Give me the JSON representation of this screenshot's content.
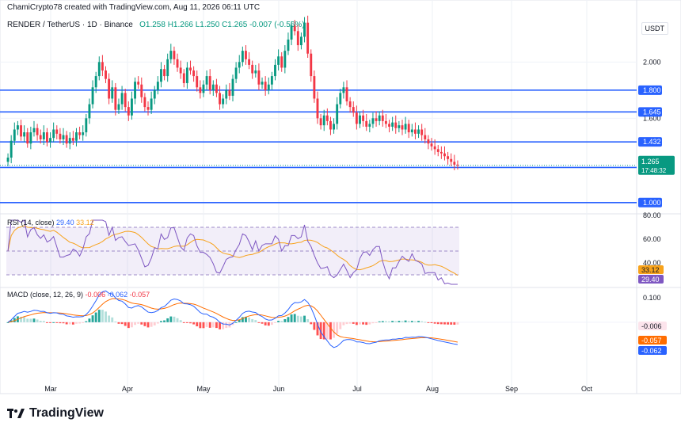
{
  "header": {
    "author_line": "ChamiCrypto78 created with TradingView.com, Aug 11, 2026 06:11 UTC"
  },
  "symbol_line": {
    "pair": "RENDER / TetherUS · 1D · Binance",
    "ohlc": "O1.258  H1.266  L1.250  C1.265  -0.007 (-0.56%)"
  },
  "currency": "USDT",
  "brand": "TradingView",
  "indicators": {
    "rsi_label": "RSI (14, close)",
    "rsi_value": "29.40",
    "rsi_ma_value": "33.12",
    "macd_label": "MACD (close, 12, 26, 9)",
    "macd_hist": "-0.006",
    "macd_line": "-0.062",
    "macd_signal": "-0.057"
  },
  "colors": {
    "up": "#089981",
    "down": "#f23645",
    "level": "#2962ff",
    "rsi": "#7e57c2",
    "rsi_ma": "#f7a21b",
    "macd": "#2962ff",
    "signal": "#ff6d00"
  },
  "chart_data": [
    {
      "type": "candlestick",
      "title": "RENDER / TetherUS · 1D · Binance",
      "x_ticks": [
        "Mar",
        "Apr",
        "May",
        "Jun",
        "Jul",
        "Aug",
        "Sep",
        "Oct"
      ],
      "y_ticks": [
        "1.000",
        "1.432",
        "1.600",
        "1.645",
        "1.800",
        "2.000"
      ],
      "ylim": [
        0.92,
        2.34
      ],
      "horizontal_levels": [
        1.0,
        1.25,
        1.432,
        1.645,
        1.8
      ],
      "last_price": 1.265,
      "last_price_countdown": "17:48:32",
      "close_series": [
        1.32,
        1.44,
        1.52,
        1.55,
        1.47,
        1.5,
        1.42,
        1.5,
        1.53,
        1.48,
        1.45,
        1.5,
        1.43,
        1.46,
        1.52,
        1.49,
        1.45,
        1.48,
        1.42,
        1.46,
        1.44,
        1.5,
        1.48,
        1.5,
        1.6,
        1.7,
        1.82,
        1.9,
        2.0,
        1.94,
        1.88,
        1.74,
        1.82,
        1.66,
        1.7,
        1.78,
        1.68,
        1.62,
        1.74,
        1.86,
        1.84,
        1.75,
        1.68,
        1.66,
        1.74,
        1.8,
        1.86,
        1.95,
        1.9,
        2.02,
        2.08,
        2.02,
        1.96,
        1.92,
        1.85,
        1.96,
        1.94,
        1.9,
        1.82,
        1.78,
        1.84,
        1.9,
        1.8,
        1.84,
        1.78,
        1.7,
        1.74,
        1.8,
        1.76,
        1.88,
        1.96,
        2.0,
        2.08,
        2.02,
        1.98,
        1.92,
        1.94,
        1.84,
        1.86,
        1.8,
        1.84,
        1.9,
        1.98,
        2.04,
        1.96,
        2.08,
        2.16,
        2.26,
        2.22,
        2.12,
        2.18,
        2.28,
        2.06,
        1.9,
        1.74,
        1.6,
        1.55,
        1.62,
        1.58,
        1.52,
        1.56,
        1.7,
        1.78,
        1.82,
        1.72,
        1.68,
        1.64,
        1.56,
        1.62,
        1.58,
        1.54,
        1.56,
        1.6,
        1.58,
        1.62,
        1.58,
        1.56,
        1.54,
        1.57,
        1.53,
        1.55,
        1.52,
        1.56,
        1.5,
        1.52,
        1.49,
        1.52,
        1.48,
        1.45,
        1.42,
        1.4,
        1.38,
        1.36,
        1.35,
        1.33,
        1.31,
        1.29,
        1.27,
        1.265
      ],
      "rsi_ylim": [
        20,
        80
      ],
      "rsi_y_ticks": [
        40,
        60,
        80
      ],
      "rsi_bands": [
        30,
        50,
        70
      ],
      "macd_ylim": [
        -0.21,
        0.135
      ],
      "macd_y_ticks": [
        0.1
      ]
    }
  ]
}
